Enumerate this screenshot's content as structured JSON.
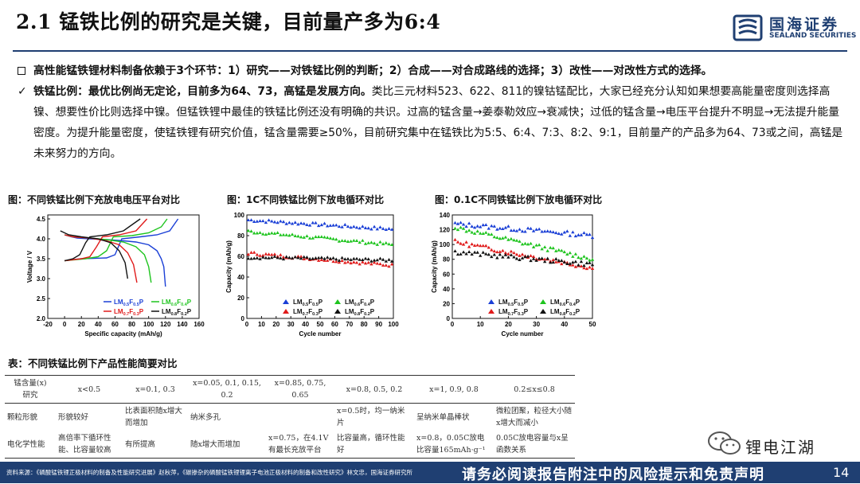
{
  "title": "2.1 锰铁比例的研究是关键，目前量产多为6:4",
  "logo": {
    "cn": "国海证券",
    "en": "SEALAND SECURITIES"
  },
  "bullets": [
    "高性能锰铁锂材料制备依赖于3个环节：1）研究——对铁锰比例的判断；2）合成——对合成路线的选择；3）改性——对改性方式的选择。",
    "铁锰比例：最优比例尚无定论，目前多为64、73，高锰是发展方向。",
    "类比三元材料523、622、811的镍钴锰配比，大家已经充分认知如果想要高能量密度则选择高镍、想要性价比则选择中镍。但锰铁锂中最佳的铁锰比例还没有明确的共识。过高的锰含量→姜泰勒效应→衰减快；过低的锰含量→电压平台提升不明显→无法提升能量密度。为提升能量密度，使锰铁锂有研究价值，锰含量需要≥50%，目前研究集中在锰铁比为5:5、6:4、7:3、8:2、9:1，目前量产的产品多为64、73或之间，高锰是未来努力的方向。"
  ],
  "figures": [
    {
      "caption": "图：不同铁锰比例下充放电电压平台对比",
      "chart_data": {
        "type": "line",
        "xlabel": "Specific capacity (mAh/g)",
        "ylabel": "Voltage / V",
        "xlim": [
          -20,
          160
        ],
        "ylim": [
          2.0,
          4.6
        ],
        "xticks": [
          "-20",
          "0",
          "20",
          "40",
          "60",
          "80",
          "100",
          "120",
          "140",
          "160"
        ],
        "yticks": [
          "2.0",
          "2.5",
          "3.0",
          "3.5",
          "4.0",
          "4.5"
        ],
        "legend": "bottom-right",
        "series": [
          {
            "name": "LM0.5F0.5P",
            "color": "#1a3fd6",
            "discharge": [
              [
                0,
                4.1
              ],
              [
                8,
                4.05
              ],
              [
                15,
                4.02
              ],
              [
                30,
                4.0
              ],
              [
                50,
                3.98
              ],
              [
                70,
                3.95
              ],
              [
                85,
                3.92
              ],
              [
                100,
                3.85
              ],
              [
                110,
                3.7
              ],
              [
                115,
                3.5
              ],
              [
                118,
                3.3
              ],
              [
                120,
                2.8
              ]
            ],
            "charge": [
              [
                0,
                3.45
              ],
              [
                20,
                3.5
              ],
              [
                50,
                3.52
              ],
              [
                60,
                3.6
              ],
              [
                68,
                4.0
              ],
              [
                90,
                4.05
              ],
              [
                110,
                4.1
              ],
              [
                125,
                4.2
              ],
              [
                135,
                4.5
              ]
            ]
          },
          {
            "name": "LM0.6F0.4P",
            "color": "#1ec41e",
            "discharge": [
              [
                0,
                4.1
              ],
              [
                10,
                4.05
              ],
              [
                30,
                4.02
              ],
              [
                50,
                3.98
              ],
              [
                70,
                3.92
              ],
              [
                85,
                3.8
              ],
              [
                95,
                3.6
              ],
              [
                100,
                3.3
              ],
              [
                103,
                2.9
              ]
            ],
            "charge": [
              [
                0,
                3.45
              ],
              [
                25,
                3.5
              ],
              [
                40,
                3.55
              ],
              [
                50,
                3.7
              ],
              [
                58,
                4.05
              ],
              [
                80,
                4.08
              ],
              [
                100,
                4.15
              ],
              [
                115,
                4.3
              ],
              [
                122,
                4.5
              ]
            ]
          },
          {
            "name": "LM0.7F0.3P",
            "color": "#e01a1a",
            "discharge": [
              [
                0,
                4.1
              ],
              [
                10,
                4.05
              ],
              [
                30,
                4.02
              ],
              [
                50,
                3.95
              ],
              [
                65,
                3.85
              ],
              [
                75,
                3.65
              ],
              [
                82,
                3.35
              ],
              [
                86,
                2.9
              ]
            ],
            "charge": [
              [
                0,
                3.45
              ],
              [
                20,
                3.5
              ],
              [
                30,
                3.55
              ],
              [
                38,
                3.8
              ],
              [
                45,
                4.05
              ],
              [
                65,
                4.1
              ],
              [
                85,
                4.2
              ],
              [
                98,
                4.5
              ]
            ]
          },
          {
            "name": "LM0.8F0.2P",
            "color": "#111111",
            "discharge": [
              [
                -5,
                4.2
              ],
              [
                5,
                4.1
              ],
              [
                20,
                4.05
              ],
              [
                40,
                4.0
              ],
              [
                55,
                3.9
              ],
              [
                65,
                3.7
              ],
              [
                72,
                3.4
              ],
              [
                75,
                3.0
              ]
            ],
            "charge": [
              [
                0,
                3.45
              ],
              [
                10,
                3.5
              ],
              [
                18,
                3.6
              ],
              [
                25,
                3.9
              ],
              [
                30,
                4.05
              ],
              [
                50,
                4.1
              ],
              [
                70,
                4.2
              ],
              [
                90,
                4.5
              ]
            ]
          }
        ]
      }
    },
    {
      "caption": "图：1C不同铁锰比例下放电循环对比",
      "chart_data": {
        "type": "scatter",
        "xlabel": "Cycle number",
        "ylabel": "Capacity (mAh/g)",
        "xlim": [
          0,
          100
        ],
        "ylim": [
          0,
          100
        ],
        "xticks": [
          "0",
          "10",
          "20",
          "30",
          "40",
          "50",
          "60",
          "70",
          "80",
          "90",
          "100"
        ],
        "yticks": [
          "0",
          "20",
          "40",
          "60",
          "80",
          "100"
        ],
        "legend": "bottom",
        "series": [
          {
            "name": "LM0.5F0.5P",
            "color": "#1a3fd6",
            "start": 95,
            "end": 86
          },
          {
            "name": "LM0.6F0.4P",
            "color": "#1ec41e",
            "start": 84,
            "end": 71
          },
          {
            "name": "LM0.7F0.3P",
            "color": "#e01a1a",
            "start": 63,
            "end": 51
          },
          {
            "name": "LM0.8F0.2P",
            "color": "#111111",
            "start": 59,
            "end": 56
          }
        ]
      }
    },
    {
      "caption": "图：0.1C不同铁锰比例下放电循环对比",
      "chart_data": {
        "type": "scatter",
        "xlabel": "Cycle number",
        "ylabel": "Capacity (mAh/g)",
        "xlim": [
          0,
          50
        ],
        "ylim": [
          0,
          140
        ],
        "xticks": [
          "0",
          "10",
          "20",
          "30",
          "40",
          "50"
        ],
        "yticks": [
          "0",
          "20",
          "40",
          "60",
          "80",
          "100",
          "120",
          "140"
        ],
        "legend": "bottom",
        "series": [
          {
            "name": "LM0.5F0.5P",
            "color": "#1a3fd6",
            "start": 128,
            "end": 112
          },
          {
            "name": "LM0.6F0.4P",
            "color": "#1ec41e",
            "start": 124,
            "end": 80
          },
          {
            "name": "LM0.7F0.3P",
            "color": "#e01a1a",
            "start": 104,
            "end": 68
          },
          {
            "name": "LM0.8F0.2P",
            "color": "#111111",
            "start": 90,
            "end": 73
          }
        ]
      }
    }
  ],
  "table": {
    "caption": "表：不同铁锰比例下产品性能简要对比",
    "header": [
      "锰含量(x)\n研究",
      "x<0.5",
      "x=0.1, 0.3",
      "x=0.05, 0.1, 0.15, 0.2",
      "x=0.85, 0.75, 0.65",
      "x=0.8, 0.5, 0.2",
      "x=1, 0.9, 0.8",
      "0.2≤x≤0.8"
    ],
    "rows": [
      [
        "颗粒形貌",
        "形貌较好",
        "比表面积随x增大而增加",
        "纳米多孔",
        "",
        "x=0.5时，均一纳米片",
        "呈纳米单晶棒状",
        "微粒团聚，粒径大小随x增大而减小"
      ],
      [
        "电化学性能",
        "高倍率下循环性能、比容量较高",
        "有所提高",
        "随x增大而增加",
        "x=0.75，在4.1V有最长充放平台",
        "比容量高，循环性能好",
        "x=0.8，0.05C放电比容量165mAh·g⁻¹",
        "0.05C放电容量与x呈函数关系"
      ]
    ]
  },
  "wechat": "锂电江湖",
  "footer": {
    "source": "资料来源：《磷酸锰铁锂正极材料的制备及性能研究进展》赵秋萍，《碳掺杂的磷酸锰铁锂锂离子电池正极材料的制备和改性研究》林文忠，国海证券研究所",
    "disclaimer": "请务必阅读报告附注中的风险提示和免责声明",
    "page": "14"
  }
}
